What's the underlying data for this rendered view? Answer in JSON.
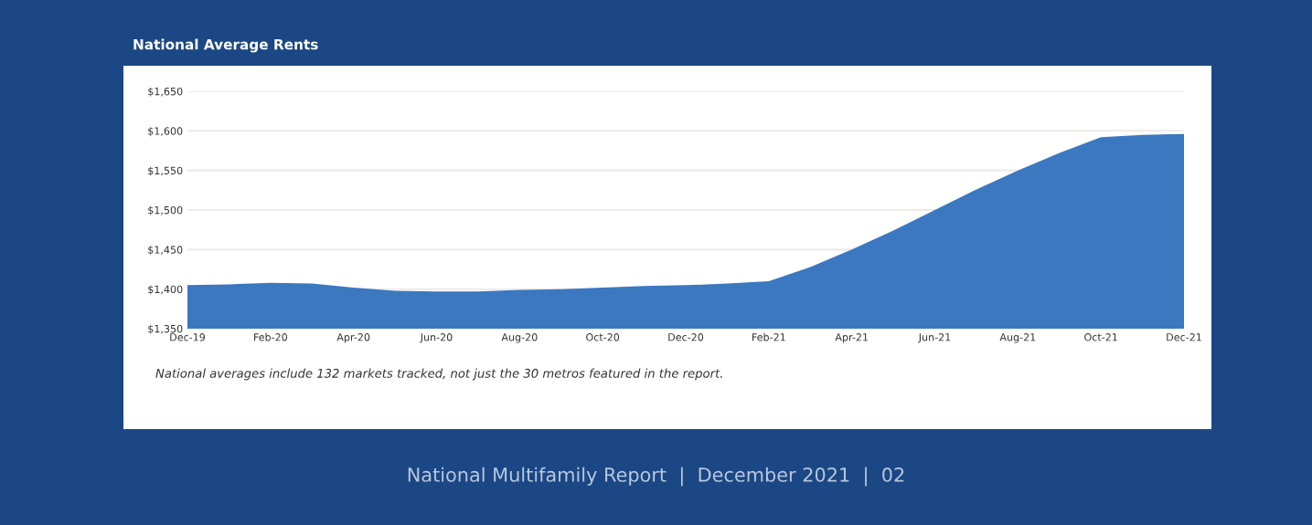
{
  "chart_data": {
    "type": "area",
    "title": "National Average Rents",
    "categories": [
      "Dec-19",
      null,
      "Feb-20",
      null,
      "Apr-20",
      null,
      "Jun-20",
      null,
      "Aug-20",
      null,
      "Oct-20",
      null,
      "Dec-20",
      null,
      "Feb-21",
      null,
      "Apr-21",
      null,
      "Jun-21",
      null,
      "Aug-21",
      null,
      "Oct-21",
      null,
      "Dec-21"
    ],
    "series": [
      {
        "color": "#3b78bf",
        "values": [
          1405,
          1406,
          1408,
          1407,
          1402,
          1398,
          1397,
          1397,
          1399,
          1400,
          1402,
          1404,
          1405,
          1407,
          1410,
          1428,
          1450,
          1474,
          1500,
          1526,
          1550,
          1572,
          1592,
          1595,
          1596
        ]
      }
    ],
    "ylim": [
      1350,
      1650
    ],
    "yticks": [
      {
        "value": 1350,
        "label": "$1,350"
      },
      {
        "value": 1400,
        "label": "$1,400"
      },
      {
        "value": 1450,
        "label": "$1,450"
      },
      {
        "value": 1500,
        "label": "$1,500"
      },
      {
        "value": 1550,
        "label": "$1,550"
      },
      {
        "value": 1600,
        "label": "$1,600"
      },
      {
        "value": 1650,
        "label": "$1,650"
      }
    ],
    "grid": "y",
    "annotations": [
      "National averages include 132 markets tracked, not just the 30 metros featured in the report.",
      "National Multifamily Report  |  December 2021  |  02"
    ]
  }
}
